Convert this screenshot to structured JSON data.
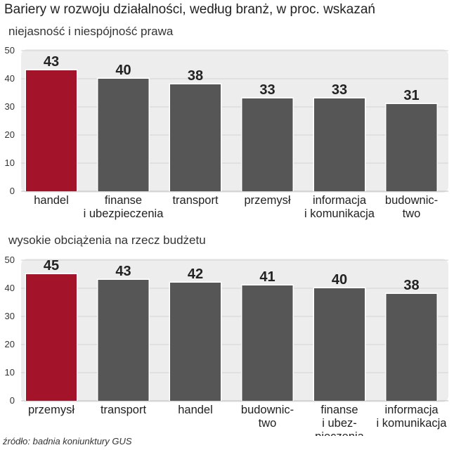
{
  "title": "Bariery w rozwoju działalności, według branż, w proc. wskazań",
  "source": "źródło: badnia koniunktury GUS",
  "colors": {
    "highlight": "#a3132a",
    "bar": "#565656",
    "panel": "#ededed",
    "grid": "#d2d2d2"
  },
  "chart_data": [
    {
      "type": "bar",
      "subtitle": "niejasność i niespójność prawa",
      "categories": [
        "handel",
        "finanse\ni ubezpieczenia",
        "transport",
        "przemysł",
        "informacja\ni komunikacja",
        "budownic-\ntwo"
      ],
      "values": [
        43,
        40,
        38,
        33,
        33,
        31
      ],
      "highlight_index": 0,
      "ylim": [
        0,
        50
      ],
      "yticks": [
        0,
        10,
        20,
        30,
        40,
        50
      ],
      "grid": true
    },
    {
      "type": "bar",
      "subtitle": "wysokie obciążenia na rzecz budżetu",
      "categories": [
        "przemysł",
        "transport",
        "handel",
        "budownic-\ntwo",
        "finanse\ni ubez-\npieczenia",
        "informacja\ni komunikacja"
      ],
      "values": [
        45,
        43,
        42,
        41,
        40,
        38
      ],
      "highlight_index": 0,
      "ylim": [
        0,
        50
      ],
      "yticks": [
        0,
        10,
        20,
        30,
        40,
        50
      ],
      "grid": true
    }
  ]
}
